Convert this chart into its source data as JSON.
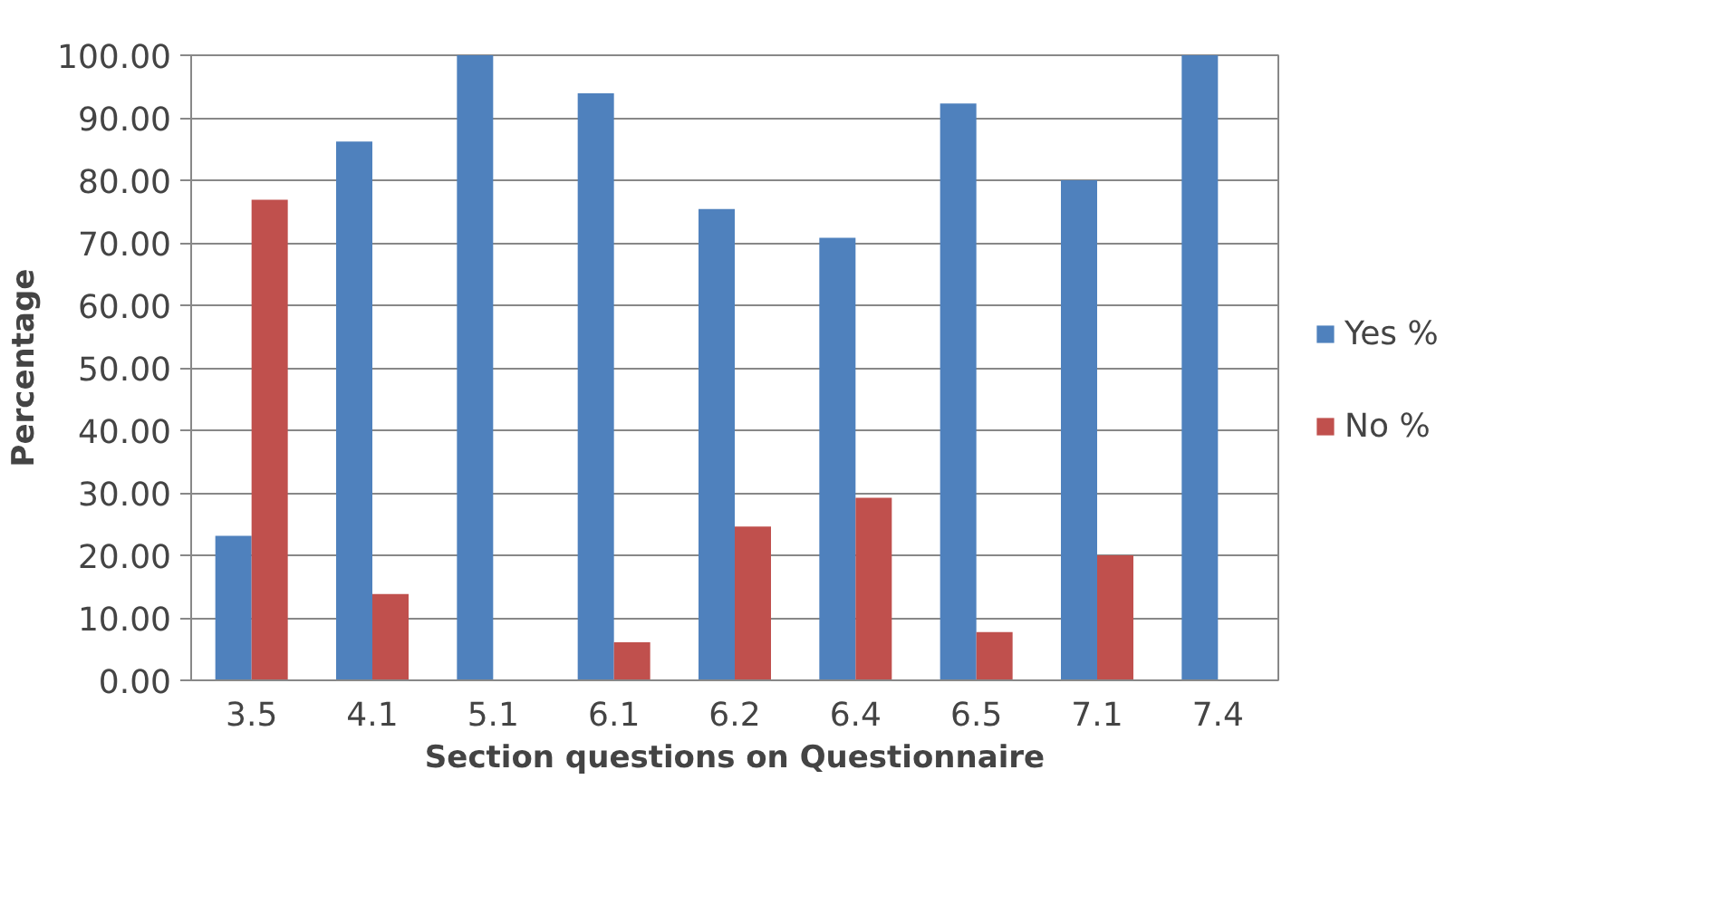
{
  "chart_data": {
    "type": "bar",
    "xlabel": "Section questions on Questionnaire",
    "ylabel": "Percentage",
    "categories": [
      "3.5",
      "4.1",
      "5.1",
      "6.1",
      "6.2",
      "6.4",
      "6.5",
      "7.1",
      "7.4"
    ],
    "series": [
      {
        "name": "Yes %",
        "color": "#4f81bd",
        "values": [
          23.1,
          86.2,
          100,
          93.9,
          75.4,
          70.8,
          92.3,
          80.0,
          100
        ]
      },
      {
        "name": "No %",
        "color": "#c0504d",
        "values": [
          76.9,
          13.8,
          0,
          6.1,
          24.6,
          29.2,
          7.7,
          20.0,
          0
        ]
      }
    ],
    "ylim": [
      0,
      100
    ],
    "yticks": [
      {
        "value": 0,
        "label": "0.00"
      },
      {
        "value": 10,
        "label": "10.00"
      },
      {
        "value": 20,
        "label": "20.00"
      },
      {
        "value": 30,
        "label": "30.00"
      },
      {
        "value": 40,
        "label": "40.00"
      },
      {
        "value": 50,
        "label": "50.00"
      },
      {
        "value": 60,
        "label": "60.00"
      },
      {
        "value": 70,
        "label": "70.00"
      },
      {
        "value": 80,
        "label": "80.00"
      },
      {
        "value": 90,
        "label": "90.00"
      },
      {
        "value": 100,
        "label": "100.00"
      }
    ],
    "grid": "y",
    "legend": "right"
  }
}
